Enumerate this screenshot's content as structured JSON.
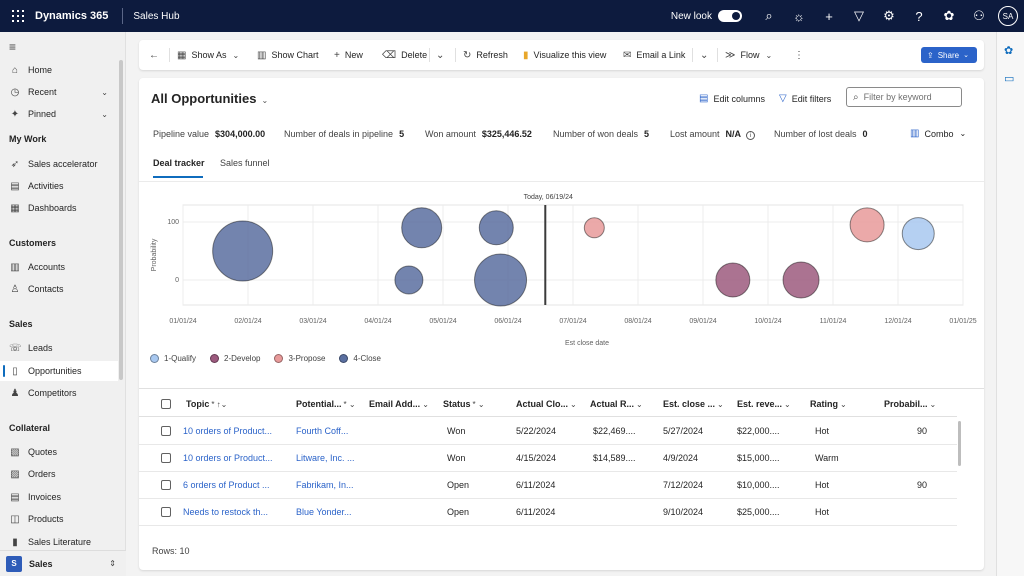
{
  "topbar": {
    "brand": "Dynamics 365",
    "app_name": "Sales Hub",
    "new_look_label": "New look",
    "new_look_on": true,
    "avatar_initials": "SA"
  },
  "sidebar": {
    "top_items": [
      {
        "label": "Home",
        "icon": "home-icon"
      },
      {
        "label": "Recent",
        "icon": "clock-icon",
        "expandable": true
      },
      {
        "label": "Pinned",
        "icon": "pin-icon",
        "expandable": true
      }
    ],
    "groups": [
      {
        "title": "My Work",
        "items": [
          "Sales accelerator",
          "Activities",
          "Dashboards"
        ]
      },
      {
        "title": "Customers",
        "items": [
          "Accounts",
          "Contacts"
        ]
      },
      {
        "title": "Sales",
        "items": [
          "Leads",
          "Opportunities",
          "Competitors"
        ]
      },
      {
        "title": "Collateral",
        "items": [
          "Quotes",
          "Orders",
          "Invoices",
          "Products",
          "Sales Literature"
        ]
      }
    ],
    "active_item": "Opportunities",
    "area_switcher": {
      "badge": "S",
      "label": "Sales"
    }
  },
  "commandbar": {
    "show_as": "Show As",
    "show_chart": "Show Chart",
    "new": "New",
    "delete": "Delete",
    "refresh": "Refresh",
    "visualize": "Visualize this view",
    "email_link": "Email a Link",
    "flow": "Flow",
    "share": "Share"
  },
  "view": {
    "title": "All Opportunities",
    "edit_columns": "Edit columns",
    "edit_filters": "Edit filters",
    "filter_placeholder": "Filter by keyword"
  },
  "metrics": {
    "pipeline_value_label": "Pipeline value",
    "pipeline_value": "$304,000.00",
    "deals_in_pipeline_label": "Number of deals in pipeline",
    "deals_in_pipeline": "5",
    "won_amount_label": "Won amount",
    "won_amount": "$325,446.52",
    "won_deals_label": "Number of won deals",
    "won_deals": "5",
    "lost_amount_label": "Lost amount",
    "lost_amount": "N/A",
    "lost_deals_label": "Number of lost deals",
    "lost_deals": "0",
    "combo_label": "Combo"
  },
  "tabs": [
    "Deal tracker",
    "Sales funnel"
  ],
  "chart_data": {
    "type": "scatter",
    "today_label": "Today, 06/19/24",
    "today_date": "2024-06-19",
    "xlabel": "Est close date",
    "ylabel": "Probability",
    "x_ticks": [
      "01/01/24",
      "02/01/24",
      "03/01/24",
      "04/01/24",
      "05/01/24",
      "06/01/24",
      "07/01/24",
      "08/01/24",
      "09/01/24",
      "10/01/24",
      "11/01/24",
      "12/01/24",
      "01/01/25"
    ],
    "y_ticks": [
      "100",
      "0"
    ],
    "series": [
      {
        "name": "1-Qualify",
        "color": "#a8c8f0",
        "points": [
          {
            "x": "2024-12-11",
            "y": 80,
            "size": 16
          }
        ]
      },
      {
        "name": "2-Develop",
        "color": "#9c5a7e",
        "points": [
          {
            "x": "2024-09-15",
            "y": 0,
            "size": 17
          },
          {
            "x": "2024-10-17",
            "y": 0,
            "size": 18
          }
        ]
      },
      {
        "name": "3-Propose",
        "color": "#e89a9a",
        "points": [
          {
            "x": "2024-07-12",
            "y": 90,
            "size": 10
          },
          {
            "x": "2024-11-17",
            "y": 95,
            "size": 17
          }
        ]
      },
      {
        "name": "4-Close",
        "color": "#5a6fa0",
        "points": [
          {
            "x": "2024-01-29",
            "y": 50,
            "size": 30
          },
          {
            "x": "2024-04-16",
            "y": 0,
            "size": 14
          },
          {
            "x": "2024-04-22",
            "y": 90,
            "size": 20
          },
          {
            "x": "2024-05-27",
            "y": 90,
            "size": 17
          },
          {
            "x": "2024-05-29",
            "y": 0,
            "size": 26
          }
        ]
      }
    ]
  },
  "grid": {
    "columns": [
      "Topic",
      "Potential...",
      "Email Add...",
      "Status",
      "Actual Clo...",
      "Actual R...",
      "Est. close ...",
      "Est. reve...",
      "Rating",
      "Probabil..."
    ],
    "rows": [
      {
        "topic": "10 orders of Product...",
        "potential": "Fourth Coff...",
        "email": "",
        "status": "Won",
        "actual_close": "5/22/2024",
        "actual_revenue": "$22,469....",
        "est_close": "5/27/2024",
        "est_revenue": "$22,000....",
        "rating": "Hot",
        "probability": "90"
      },
      {
        "topic": "10 orders or Product...",
        "potential": "Litware, Inc. ...",
        "email": "",
        "status": "Won",
        "actual_close": "4/15/2024",
        "actual_revenue": "$14,589....",
        "est_close": "4/9/2024",
        "est_revenue": "$15,000....",
        "rating": "Warm",
        "probability": ""
      },
      {
        "topic": "6 orders of Product ...",
        "potential": "Fabrikam, In...",
        "email": "",
        "status": "Open",
        "actual_close": "6/11/2024",
        "actual_revenue": "",
        "est_close": "7/12/2024",
        "est_revenue": "$10,000....",
        "rating": "Hot",
        "probability": "90"
      },
      {
        "topic": "Needs to restock th...",
        "potential": "Blue Yonder...",
        "email": "",
        "status": "Open",
        "actual_close": "6/11/2024",
        "actual_revenue": "",
        "est_close": "9/10/2024",
        "est_revenue": "$25,000....",
        "rating": "Hot",
        "probability": ""
      }
    ],
    "rows_label": "Rows: 10"
  }
}
